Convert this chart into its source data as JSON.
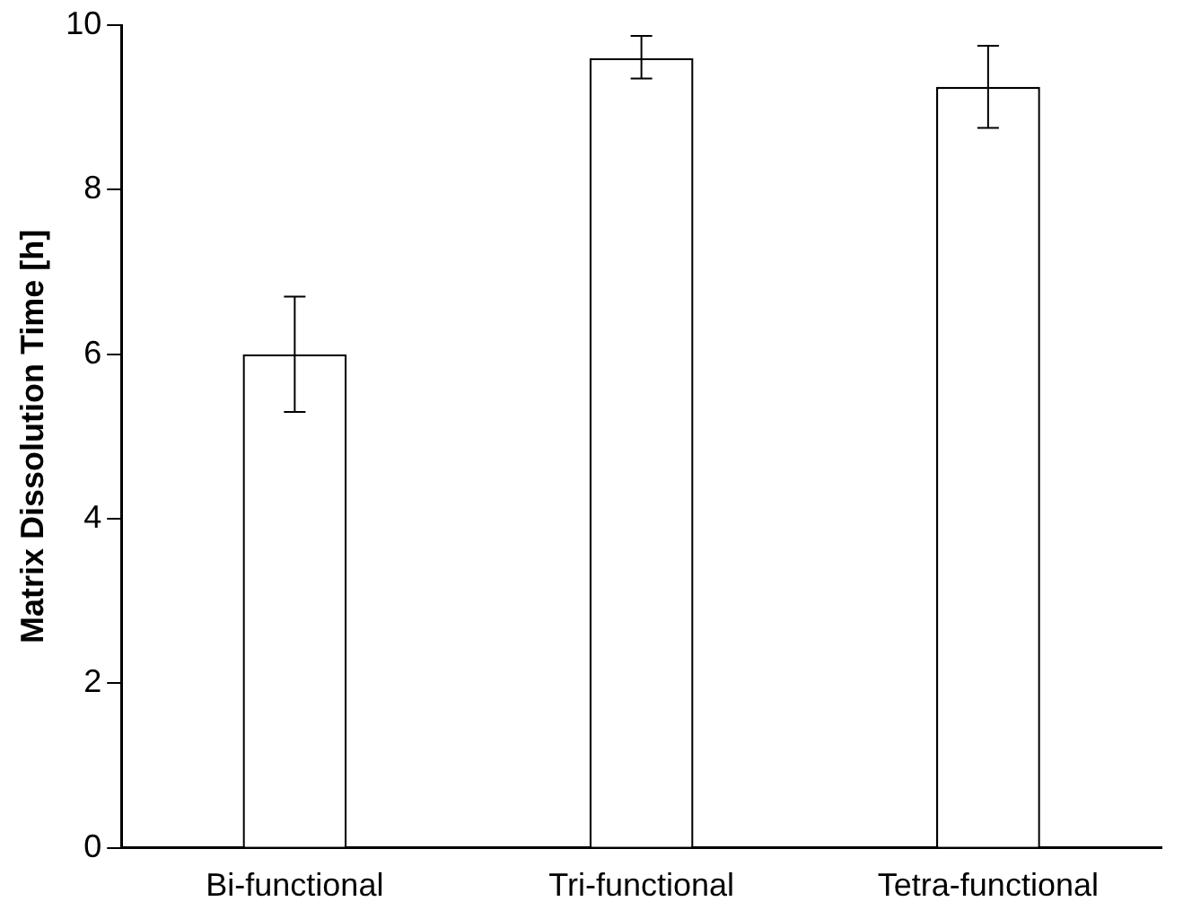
{
  "chart_data": {
    "type": "bar",
    "ylabel": "Matrix Dissolution Time [h]",
    "categories": [
      "Bi-functional",
      "Tri-functional",
      "Tetra-functional"
    ],
    "values": [
      6.0,
      9.6,
      9.25
    ],
    "errors": [
      [
        5.3,
        6.7
      ],
      [
        9.35,
        9.87
      ],
      [
        8.75,
        9.75
      ]
    ],
    "color": "#ffffff",
    "ylim": [
      0,
      10
    ],
    "yticks": [
      0,
      2,
      4,
      6,
      8,
      10
    ],
    "grid": false,
    "legend": false
  }
}
